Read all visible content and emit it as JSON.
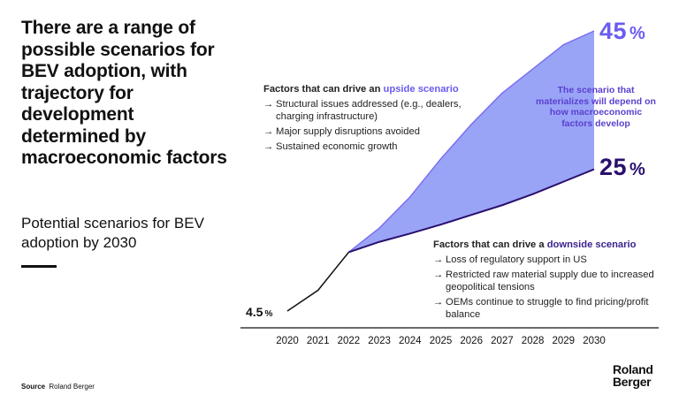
{
  "title": "There are a range of possible scenarios for BEV adoption, with trajectory for development determined by macroeconomic factors",
  "subtitle": "Potential scenarios for BEV adoption by 2030",
  "source_label": "Source",
  "source_value": "Roland Berger",
  "logo": {
    "line1": "Roland",
    "line2": "Berger"
  },
  "upside": {
    "head_prefix": "Factors that can drive an",
    "head_highlight": "upside scenario",
    "items": [
      "Structural issues addressed (e.g., dealers, charging infrastructure)",
      "Major supply disruptions avoided",
      "Sustained economic growth"
    ]
  },
  "downside": {
    "head_prefix": "Factors that can drive a",
    "head_highlight": "downside scenario",
    "items": [
      "Loss of regulatory support in US",
      "Restricted raw material supply due to increased geopolitical tensions",
      "OEMs continue to struggle to find pricing/profit balance"
    ]
  },
  "arrow_glyph": "→",
  "middle_note": "The scenario that materializes will depend on how macroeconomic factors develop",
  "labels": {
    "start_value": "4.5",
    "upper_value": "45",
    "lower_value": "25",
    "unit": "%"
  },
  "colors": {
    "band_fill": "#9aa4f7",
    "upper_line": "#7a6ff0",
    "lower_line": "#2a0f6e",
    "history_line": "#111111"
  },
  "chart_data": {
    "type": "area",
    "x": [
      2020,
      2021,
      2022,
      2023,
      2024,
      2025,
      2026,
      2027,
      2028,
      2029,
      2030
    ],
    "series": [
      {
        "name": "historical",
        "x": [
          2020,
          2021,
          2022
        ],
        "values": [
          4.5,
          7.5,
          13
        ]
      },
      {
        "name": "upside",
        "x": [
          2022,
          2023,
          2024,
          2025,
          2026,
          2027,
          2028,
          2029,
          2030
        ],
        "values": [
          13,
          16.5,
          21,
          26.5,
          31.5,
          36,
          39.5,
          43,
          45
        ]
      },
      {
        "name": "downside",
        "x": [
          2022,
          2023,
          2024,
          2025,
          2026,
          2027,
          2028,
          2029,
          2030
        ],
        "values": [
          13,
          14.5,
          15.7,
          17,
          18.4,
          19.8,
          21.4,
          23.2,
          25
        ]
      }
    ],
    "xlim": [
      2020,
      2030
    ],
    "grid": false
  }
}
